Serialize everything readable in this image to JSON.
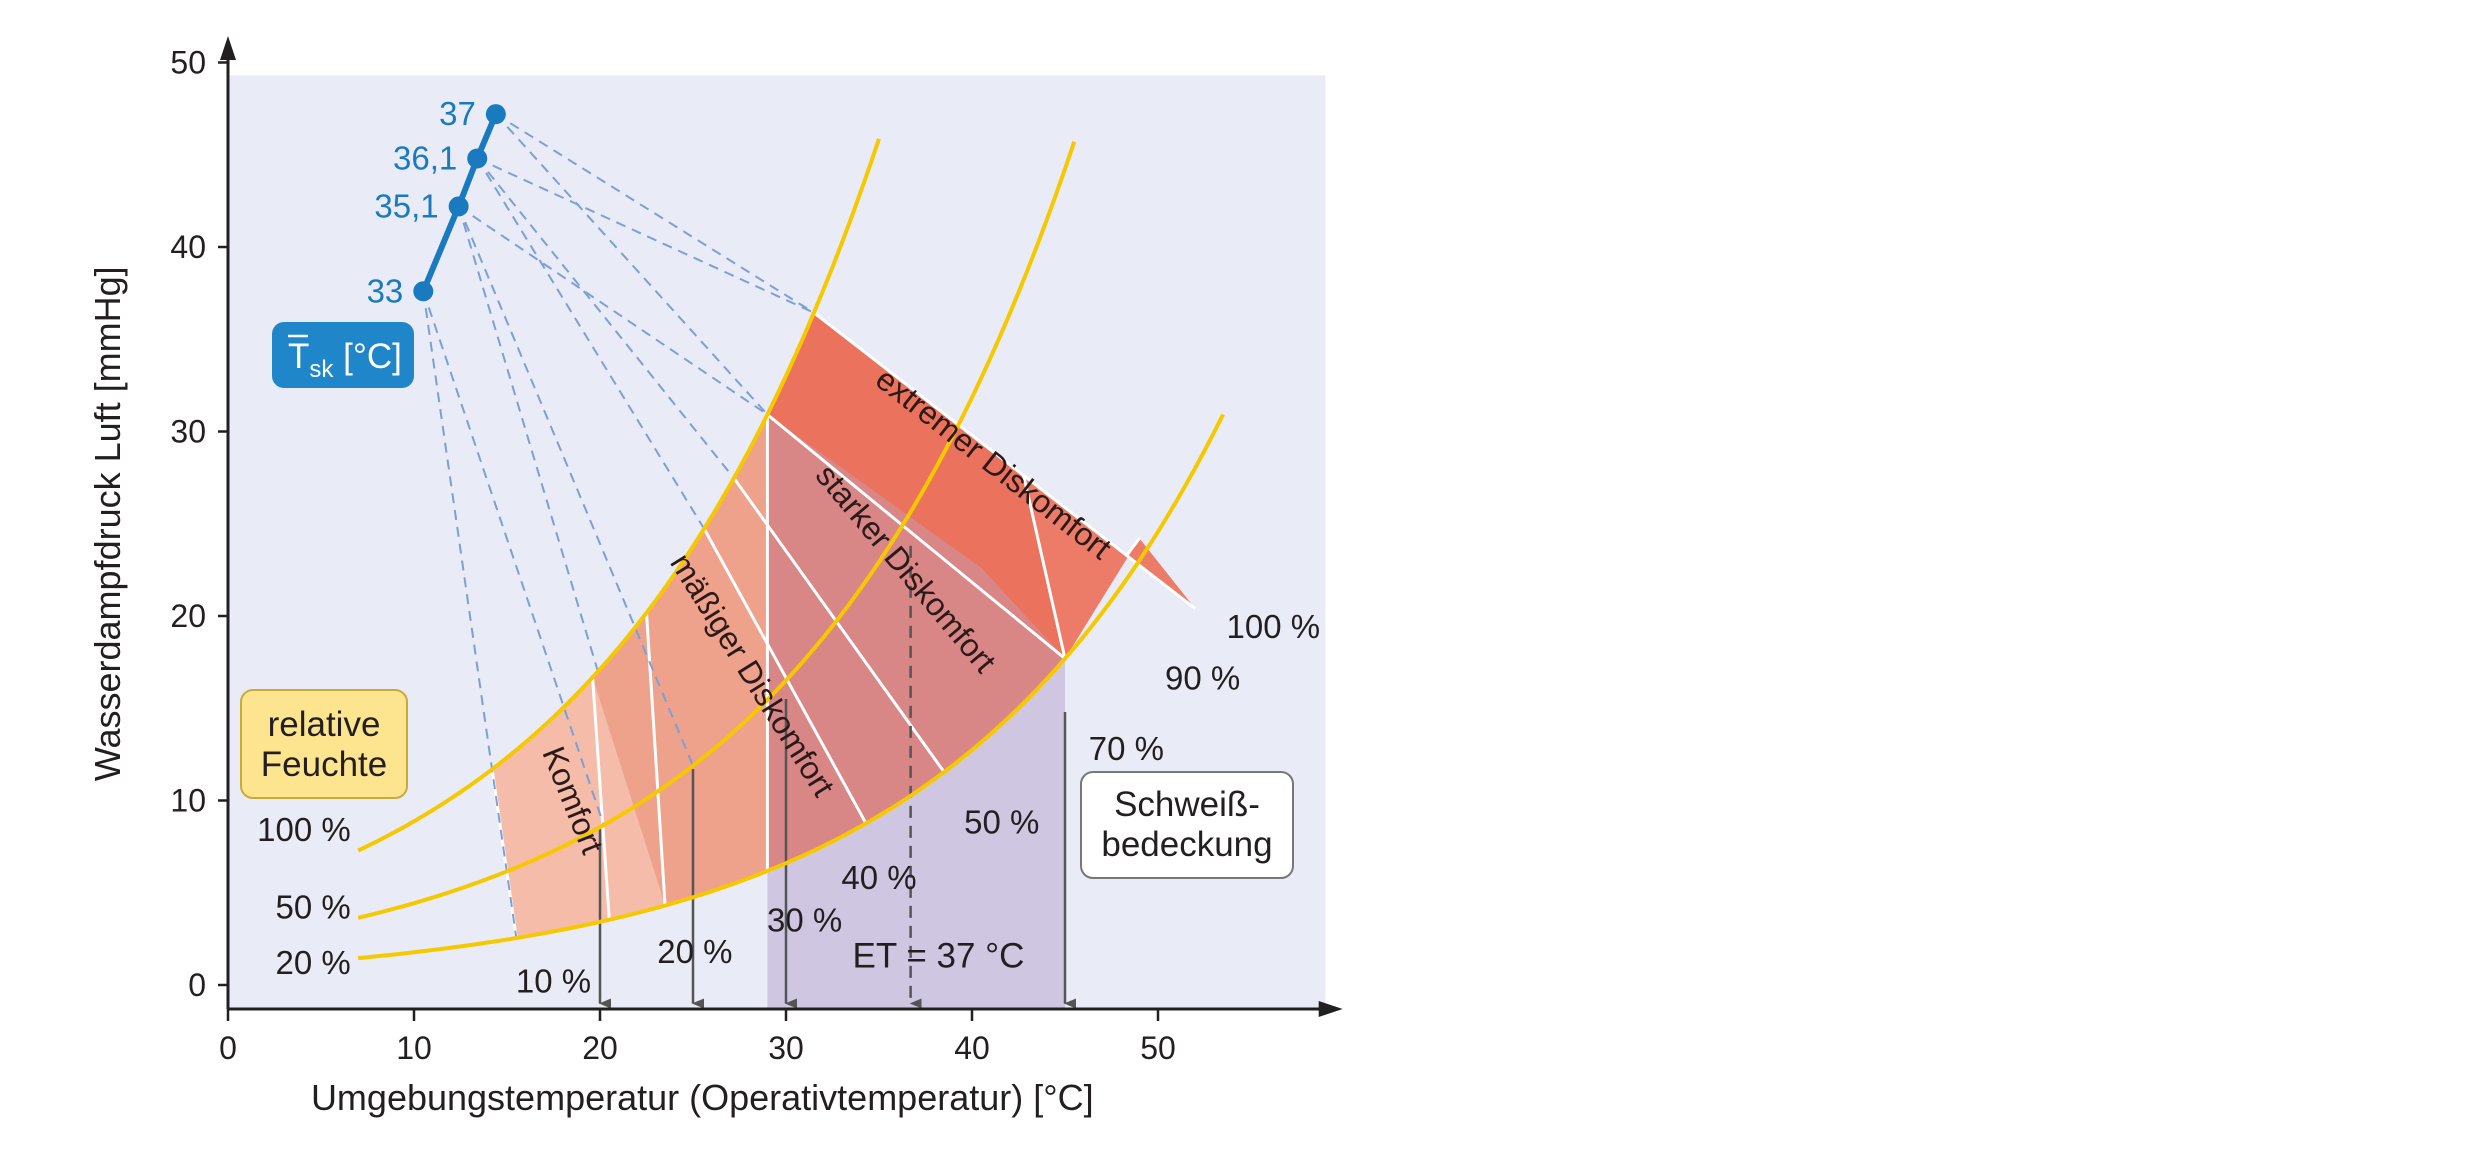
{
  "chart_data": {
    "type": "line",
    "xlabel": "Umgebungstemperatur (Operativtemperatur) [°C]",
    "ylabel": "Wasserdampfdruck Luft [mmHg]",
    "xlim": [
      0,
      58
    ],
    "ylim": [
      0,
      50
    ],
    "x_ticks": [
      "0",
      "10",
      "20",
      "30",
      "40",
      "50"
    ],
    "y_ticks": [
      "0",
      "10",
      "20",
      "30",
      "40",
      "50"
    ],
    "grid": false,
    "background_color": "#e9ecf6",
    "curve_color": "#f6c800",
    "skin_color": "#1a7abf",
    "relative_humidity_curves": [
      {
        "label": "100 %",
        "rh": 1.0,
        "x_range": [
          7,
          35
        ]
      },
      {
        "label": "50 %",
        "rh": 0.5,
        "x_range": [
          7,
          45.5
        ]
      },
      {
        "label": "20 %",
        "rh": 0.2,
        "x_range": [
          7,
          53.5
        ]
      }
    ],
    "rh_box_label": [
      "relative",
      "Feuchte"
    ],
    "skin_temperature_points": [
      {
        "label": "33",
        "x": 10.5,
        "y": 37.6
      },
      {
        "label": "35,1",
        "x": 12.4,
        "y": 42.2
      },
      {
        "label": "36,1",
        "x": 13.4,
        "y": 44.8
      },
      {
        "label": "37",
        "x": 14.4,
        "y": 47.2
      }
    ],
    "skin_legend": {
      "symbol": "T",
      "subscript": "sk",
      "unit": " [°C]"
    },
    "sweat_lines": [
      {
        "label": "10 %",
        "lower_x": 15.5
      },
      {
        "label": "20 %",
        "lower_x": 21.5
      },
      {
        "label": "30 %",
        "lower_x": 29
      },
      {
        "label": "40 %",
        "lower_x": 34
      },
      {
        "label": "50 %",
        "lower_x": 38.5
      },
      {
        "label": "70 %",
        "lower_x": 45
      },
      {
        "label": "90 %",
        "lower_x": 49
      },
      {
        "label": "100 %",
        "lower_x": 52
      }
    ],
    "sweat_box_label": [
      "Schweiß-",
      "bedeckung"
    ],
    "zones": [
      {
        "label": "Komfort",
        "color": "#f6b9a4"
      },
      {
        "label": "mäßiger Diskomfort",
        "color": "#ee9e86"
      },
      {
        "label": "starker Diskomfort",
        "color": "#d88686"
      },
      {
        "label": "extremer Diskomfort",
        "color": "#ec6f58"
      }
    ],
    "effective_temperature_lines": [
      {
        "x": 20,
        "from_y": 8.5
      },
      {
        "x": 25,
        "from_y": 11.7
      },
      {
        "x": 30,
        "from_y": 15.5
      },
      {
        "x": 45,
        "from_y": 14.8
      }
    ],
    "et_dashed_line": {
      "x": 36.7,
      "from_y": 23.8,
      "label": "ET = 37 °C"
    },
    "et_region_color": "#cfc7e2"
  }
}
